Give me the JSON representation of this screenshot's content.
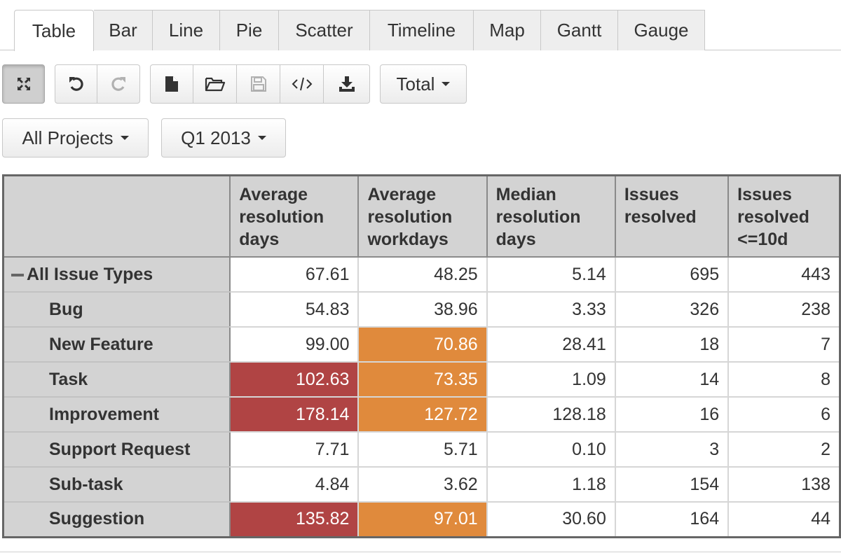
{
  "tabs": [
    {
      "label": "Table",
      "active": true
    },
    {
      "label": "Bar",
      "active": false
    },
    {
      "label": "Line",
      "active": false
    },
    {
      "label": "Pie",
      "active": false
    },
    {
      "label": "Scatter",
      "active": false
    },
    {
      "label": "Timeline",
      "active": false
    },
    {
      "label": "Map",
      "active": false
    },
    {
      "label": "Gantt",
      "active": false
    },
    {
      "label": "Gauge",
      "active": false
    }
  ],
  "toolbar": {
    "fullscreen_icon": "fullscreen-icon",
    "undo_icon": "undo-icon",
    "redo_icon": "redo-icon",
    "new_icon": "new-file-icon",
    "open_icon": "open-folder-icon",
    "save_icon": "save-icon",
    "embed_icon": "code-icon",
    "export_icon": "download-icon",
    "total_label": "Total"
  },
  "filters": {
    "projects": "All Projects",
    "period": "Q1 2013"
  },
  "table": {
    "columns": [
      "Average resolution days",
      "Average resolution workdays",
      "Median resolution days",
      "Issues resolved",
      "Issues resolved <=10d"
    ],
    "rows": [
      {
        "label": "All Issue Types",
        "collapsible": true,
        "values": [
          "67.61",
          "48.25",
          "5.14",
          "695",
          "443"
        ],
        "highlight": [
          "",
          "",
          "",
          "",
          ""
        ]
      },
      {
        "label": "Bug",
        "values": [
          "54.83",
          "38.96",
          "3.33",
          "326",
          "238"
        ],
        "highlight": [
          "",
          "",
          "",
          "",
          ""
        ]
      },
      {
        "label": "New Feature",
        "values": [
          "99.00",
          "70.86",
          "28.41",
          "18",
          "7"
        ],
        "highlight": [
          "",
          "orange",
          "",
          "",
          ""
        ]
      },
      {
        "label": "Task",
        "values": [
          "102.63",
          "73.35",
          "1.09",
          "14",
          "8"
        ],
        "highlight": [
          "red",
          "orange",
          "",
          "",
          ""
        ]
      },
      {
        "label": "Improvement",
        "values": [
          "178.14",
          "127.72",
          "128.18",
          "16",
          "6"
        ],
        "highlight": [
          "red",
          "orange",
          "",
          "",
          ""
        ]
      },
      {
        "label": "Support Request",
        "values": [
          "7.71",
          "5.71",
          "0.10",
          "3",
          "2"
        ],
        "highlight": [
          "",
          "",
          "",
          "",
          ""
        ]
      },
      {
        "label": "Sub-task",
        "values": [
          "4.84",
          "3.62",
          "1.18",
          "154",
          "138"
        ],
        "highlight": [
          "",
          "",
          "",
          "",
          ""
        ]
      },
      {
        "label": "Suggestion",
        "values": [
          "135.82",
          "97.01",
          "30.60",
          "164",
          "44"
        ],
        "highlight": [
          "red",
          "orange",
          "",
          "",
          ""
        ]
      }
    ]
  },
  "colors": {
    "highlight_red": "#b04444",
    "highlight_orange": "#e08a3c",
    "header_bg": "#d3d3d3"
  }
}
